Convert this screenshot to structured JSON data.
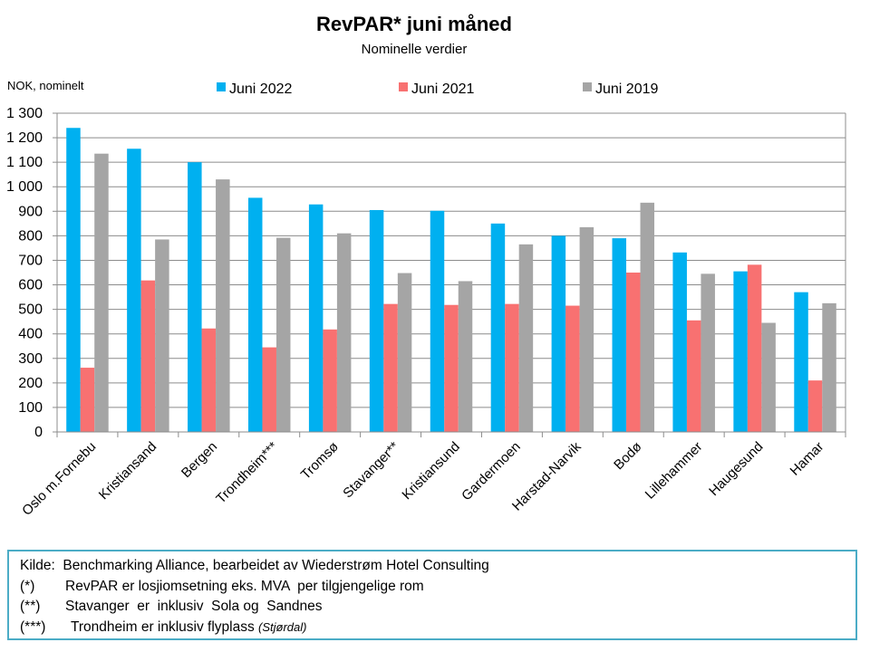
{
  "chart_data": {
    "type": "bar",
    "title": "RevPAR* juni måned",
    "subtitle": "Nominelle verdier",
    "ylabel": "NOK, nominelt",
    "xlabel": "",
    "ylim": [
      0,
      1300
    ],
    "yticks": [
      0,
      100,
      200,
      300,
      400,
      500,
      600,
      700,
      800,
      900,
      1000,
      1100,
      1200,
      1300
    ],
    "ytick_labels": [
      "0",
      "100",
      "200",
      "300",
      "400",
      "500",
      "600",
      "700",
      "800",
      "900",
      "1 000",
      "1 100",
      "1 200",
      "1 300"
    ],
    "grid": true,
    "legend_position": "top",
    "categories": [
      "Oslo m.Fornebu",
      "Kristiansand",
      "Bergen",
      "Trondheim***",
      "Tromsø",
      "Stavanger**",
      "Kristiansund",
      "Gardermoen",
      "Harstad-Narvik",
      "Bodø",
      "Lillehammer",
      "Haugesund",
      "Hamar"
    ],
    "series": [
      {
        "name": "Juni 2022",
        "color": "#00b0f0",
        "values": [
          1240,
          1155,
          1100,
          955,
          928,
          905,
          902,
          850,
          800,
          790,
          732,
          655,
          570
        ]
      },
      {
        "name": "Juni 2021",
        "color": "#f87171",
        "values": [
          262,
          618,
          422,
          345,
          418,
          522,
          518,
          522,
          515,
          650,
          455,
          682,
          210
        ]
      },
      {
        "name": "Juni 2019",
        "color": "#a5a5a5",
        "values": [
          1135,
          785,
          1030,
          792,
          810,
          648,
          615,
          765,
          835,
          935,
          645,
          445,
          525
        ]
      }
    ]
  },
  "notes": {
    "source_label": "Kilde:",
    "source_text": "Benchmarking Alliance, bearbeidet av Wiederstrøm Hotel Consulting",
    "note1_tag": "(*)",
    "note1_text": "RevPAR er losjiomsetning eks. MVA  per tilgjengelige rom",
    "note2_tag": "(**)",
    "note2_text": "Stavanger  er  inklusiv  Sola og  Sandnes",
    "note3_tag": "(***)",
    "note3_text": "Trondheim er inklusiv flyplass",
    "note3_small": "(Stjørdal)"
  }
}
